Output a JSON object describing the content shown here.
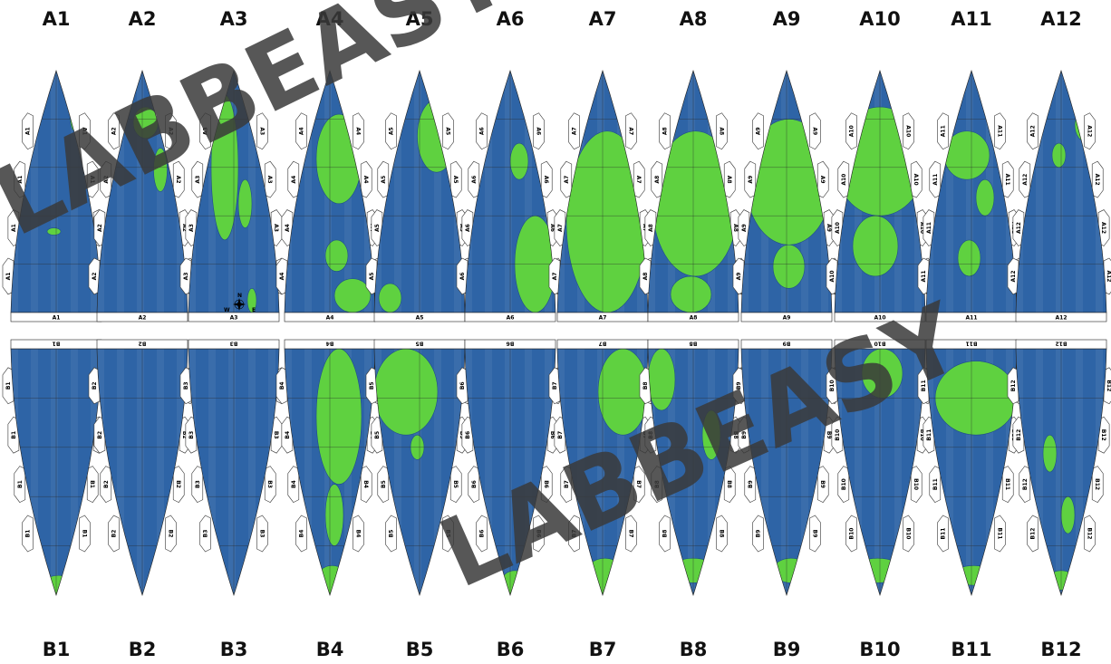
{
  "watermark": "LABBEASY",
  "colors": {
    "ocean": "#2e64a6",
    "land": "#5fd140",
    "grid": "#2a2a2a",
    "tab": "#ffffff",
    "watermark": "#3a3a3a"
  },
  "top_headers": [
    "A1",
    "A2",
    "A3",
    "A4",
    "A5",
    "A6",
    "A7",
    "A8",
    "A9",
    "A10",
    "A11",
    "A12"
  ],
  "bottom_headers": [
    "B1",
    "B2",
    "B3",
    "B4",
    "B5",
    "B6",
    "B7",
    "B8",
    "B9",
    "B10",
    "B11",
    "B12"
  ],
  "top_panel_labels": [
    "A1",
    "A2",
    "A3",
    "A4",
    "A5",
    "A6",
    "A7",
    "A8",
    "A9",
    "A10",
    "A11",
    "A12"
  ],
  "bottom_panel_labels": [
    "B1",
    "B2",
    "B3",
    "B4",
    "B5",
    "B6",
    "B7",
    "B8",
    "B9",
    "B10",
    "B11",
    "B12"
  ],
  "compass": {
    "n": "N",
    "w": "W",
    "e": "E"
  }
}
